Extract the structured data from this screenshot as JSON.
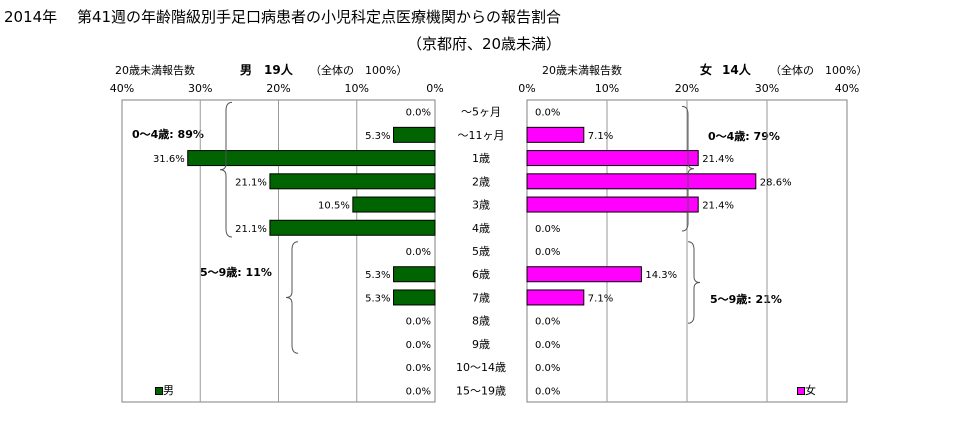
{
  "title": {
    "line1": "2014年　 第41週の年齢階級別手足口病患者の小児科定点医療機関からの報告割合",
    "line2": "（京都府、20歳未満）"
  },
  "colors": {
    "male": "#006400",
    "female": "#ff00ff",
    "grid": "#9a9a9a",
    "frame": "#808080"
  },
  "chart_data": [
    {
      "type": "bar",
      "orientation": "horizontal-left",
      "header": {
        "label": "20歳未満報告数",
        "sex": "男",
        "count": "19人",
        "total": "（全体の　100%）"
      },
      "legend": "男",
      "xlim": [
        0,
        40
      ],
      "ticks": [
        "40%",
        "30%",
        "20%",
        "10%",
        "0%"
      ],
      "categories": [
        "～5ヶ月",
        "～11ヶ月",
        "1歳",
        "2歳",
        "3歳",
        "4歳",
        "5歳",
        "6歳",
        "7歳",
        "8歳",
        "9歳",
        "10～14歳",
        "15～19歳"
      ],
      "values": [
        0.0,
        5.3,
        31.6,
        21.1,
        10.5,
        21.1,
        0.0,
        5.3,
        5.3,
        0.0,
        0.0,
        0.0,
        0.0
      ],
      "labels": [
        "0.0%",
        "5.3%",
        "31.6%",
        "21.1%",
        "10.5%",
        "21.1%",
        "0.0%",
        "5.3%",
        "5.3%",
        "0.0%",
        "0.0%",
        "0.0%",
        "0.0%"
      ],
      "annotations": [
        "0～4歳: 89%",
        "5～9歳: 11%"
      ]
    },
    {
      "type": "bar",
      "orientation": "horizontal-right",
      "header": {
        "label": "20歳未満報告数",
        "sex": "女",
        "count": "14人",
        "total": "（全体の　100%）"
      },
      "legend": "女",
      "xlim": [
        0,
        40
      ],
      "ticks": [
        "0%",
        "10%",
        "20%",
        "30%",
        "40%"
      ],
      "categories": [
        "～5ヶ月",
        "～11ヶ月",
        "1歳",
        "2歳",
        "3歳",
        "4歳",
        "5歳",
        "6歳",
        "7歳",
        "8歳",
        "9歳",
        "10～14歳",
        "15～19歳"
      ],
      "values": [
        0.0,
        7.1,
        21.4,
        28.6,
        21.4,
        0.0,
        0.0,
        14.3,
        7.1,
        0.0,
        0.0,
        0.0,
        0.0
      ],
      "labels": [
        "0.0%",
        "7.1%",
        "21.4%",
        "28.6%",
        "21.4%",
        "0.0%",
        "0.0%",
        "14.3%",
        "7.1%",
        "0.0%",
        "0.0%",
        "0.0%",
        "0.0%"
      ],
      "annotations": [
        "0～4歳: 79%",
        "5～9歳: 21%"
      ]
    }
  ]
}
